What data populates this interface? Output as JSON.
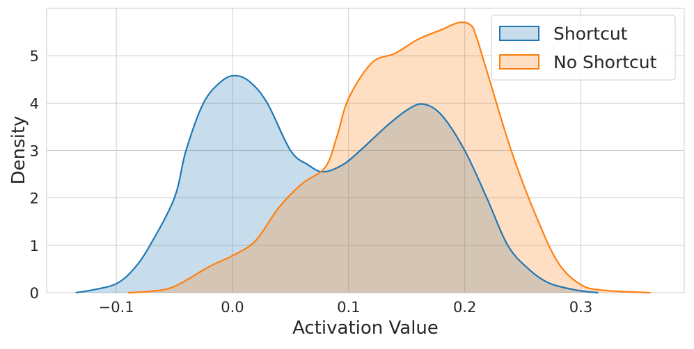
{
  "chart_data": {
    "type": "area",
    "title": "",
    "xlabel": "Activation Value",
    "ylabel": "Density",
    "xlim": [
      -0.16,
      0.389
    ],
    "ylim": [
      0,
      6.0
    ],
    "xticks": [
      -0.1,
      0.0,
      0.1,
      0.2,
      0.3
    ],
    "xtick_labels": [
      "−0.1",
      "0.0",
      "0.1",
      "0.2",
      "0.3"
    ],
    "yticks": [
      0,
      1,
      2,
      3,
      4,
      5
    ],
    "ytick_labels": [
      "0",
      "1",
      "2",
      "3",
      "4",
      "5"
    ],
    "grid": true,
    "legend_position": "top-right",
    "series": [
      {
        "name": "Shortcut",
        "color": "#1f77b4",
        "x": [
          -0.135,
          -0.12,
          -0.1,
          -0.085,
          -0.071,
          -0.05,
          -0.04,
          -0.025,
          -0.01,
          0.002,
          0.015,
          0.03,
          0.05,
          0.065,
          0.078,
          0.095,
          0.11,
          0.132,
          0.15,
          0.164,
          0.18,
          0.2,
          0.219,
          0.237,
          0.255,
          0.273,
          0.297,
          0.315
        ],
        "y": [
          0.0,
          0.06,
          0.19,
          0.5,
          1.0,
          2.0,
          3.0,
          4.0,
          4.45,
          4.58,
          4.45,
          4.0,
          3.0,
          2.7,
          2.55,
          2.7,
          3.0,
          3.5,
          3.85,
          3.98,
          3.75,
          3.0,
          2.0,
          1.0,
          0.5,
          0.2,
          0.05,
          0.0
        ]
      },
      {
        "name": "No Shortcut",
        "color": "#ff7f0e",
        "x": [
          -0.09,
          -0.07,
          -0.05,
          -0.02,
          0.0,
          0.02,
          0.04,
          0.06,
          0.08,
          0.09,
          0.1,
          0.12,
          0.14,
          0.16,
          0.18,
          0.195,
          0.205,
          0.21,
          0.22,
          0.24,
          0.26,
          0.28,
          0.3,
          0.32,
          0.36
        ],
        "y": [
          0.0,
          0.03,
          0.13,
          0.55,
          0.78,
          1.1,
          1.8,
          2.3,
          2.65,
          3.3,
          4.1,
          4.85,
          5.05,
          5.35,
          5.55,
          5.7,
          5.65,
          5.4,
          4.6,
          3.0,
          1.7,
          0.65,
          0.17,
          0.05,
          0.0
        ]
      }
    ]
  }
}
